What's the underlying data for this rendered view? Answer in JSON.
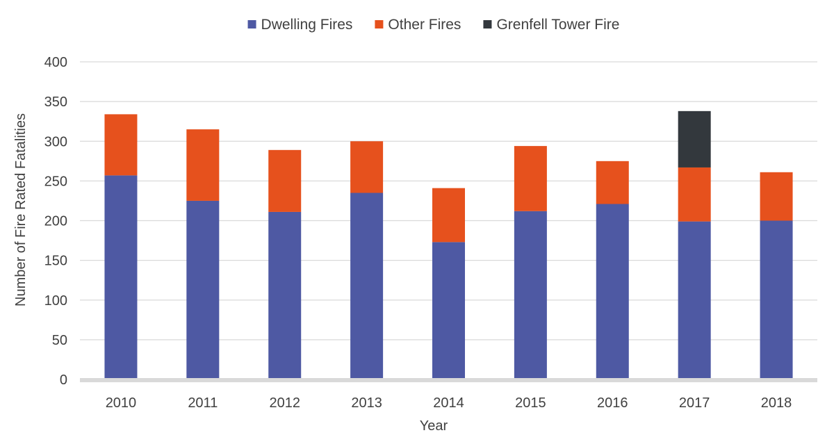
{
  "chart_data": {
    "type": "bar",
    "stacked": true,
    "title": "",
    "xlabel": "Year",
    "ylabel": "Number of Fire Rated Fatalities",
    "categories": [
      "2010",
      "2011",
      "2012",
      "2013",
      "2014",
      "2015",
      "2016",
      "2017",
      "2018"
    ],
    "ylim": [
      0,
      400
    ],
    "yticks": [
      0,
      50,
      100,
      150,
      200,
      250,
      300,
      350,
      400
    ],
    "grid": true,
    "legend_position": "top-center",
    "series": [
      {
        "name": "Dwelling Fires",
        "color": "#4e59a3",
        "values": [
          257,
          225,
          211,
          235,
          173,
          212,
          221,
          199,
          200
        ]
      },
      {
        "name": "Other Fires",
        "color": "#e6511d",
        "values": [
          77,
          90,
          78,
          65,
          68,
          82,
          54,
          68,
          61
        ]
      },
      {
        "name": "Grenfell Tower Fire",
        "color": "#33383d",
        "values": [
          0,
          0,
          0,
          0,
          0,
          0,
          0,
          71,
          0
        ]
      }
    ]
  }
}
